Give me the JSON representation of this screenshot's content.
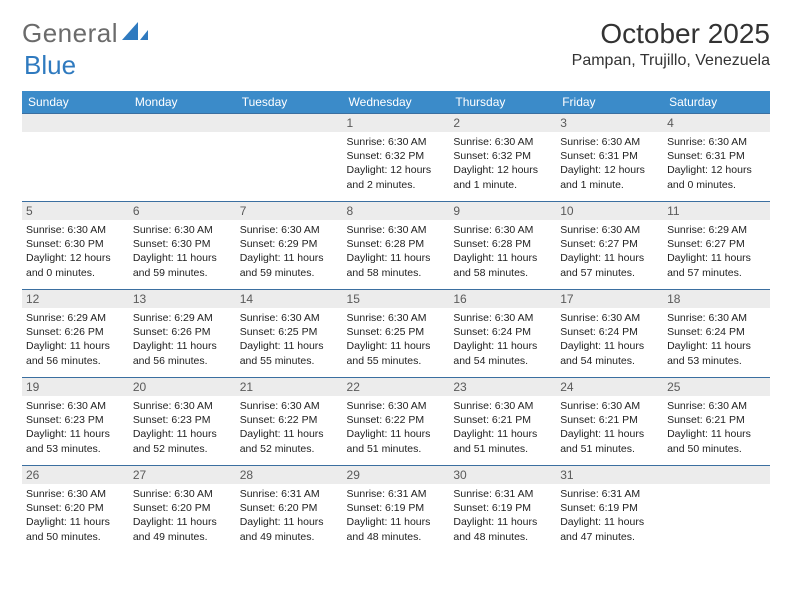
{
  "logo": {
    "part1": "General",
    "part2": "Blue"
  },
  "title": "October 2025",
  "location": "Pampan, Trujillo, Venezuela",
  "colors": {
    "header_bg": "#3b8bc9",
    "header_text": "#ffffff",
    "daynum_bg": "#ececec",
    "row_divider": "#3b6fa0",
    "logo_accent": "#2f7abf",
    "body_text": "#222222",
    "page_bg": "#ffffff"
  },
  "daynames": [
    "Sunday",
    "Monday",
    "Tuesday",
    "Wednesday",
    "Thursday",
    "Friday",
    "Saturday"
  ],
  "weeks": [
    [
      {
        "n": "",
        "sr": "",
        "ss": "",
        "dl": ""
      },
      {
        "n": "",
        "sr": "",
        "ss": "",
        "dl": ""
      },
      {
        "n": "",
        "sr": "",
        "ss": "",
        "dl": ""
      },
      {
        "n": "1",
        "sr": "Sunrise: 6:30 AM",
        "ss": "Sunset: 6:32 PM",
        "dl": "Daylight: 12 hours and 2 minutes."
      },
      {
        "n": "2",
        "sr": "Sunrise: 6:30 AM",
        "ss": "Sunset: 6:32 PM",
        "dl": "Daylight: 12 hours and 1 minute."
      },
      {
        "n": "3",
        "sr": "Sunrise: 6:30 AM",
        "ss": "Sunset: 6:31 PM",
        "dl": "Daylight: 12 hours and 1 minute."
      },
      {
        "n": "4",
        "sr": "Sunrise: 6:30 AM",
        "ss": "Sunset: 6:31 PM",
        "dl": "Daylight: 12 hours and 0 minutes."
      }
    ],
    [
      {
        "n": "5",
        "sr": "Sunrise: 6:30 AM",
        "ss": "Sunset: 6:30 PM",
        "dl": "Daylight: 12 hours and 0 minutes."
      },
      {
        "n": "6",
        "sr": "Sunrise: 6:30 AM",
        "ss": "Sunset: 6:30 PM",
        "dl": "Daylight: 11 hours and 59 minutes."
      },
      {
        "n": "7",
        "sr": "Sunrise: 6:30 AM",
        "ss": "Sunset: 6:29 PM",
        "dl": "Daylight: 11 hours and 59 minutes."
      },
      {
        "n": "8",
        "sr": "Sunrise: 6:30 AM",
        "ss": "Sunset: 6:28 PM",
        "dl": "Daylight: 11 hours and 58 minutes."
      },
      {
        "n": "9",
        "sr": "Sunrise: 6:30 AM",
        "ss": "Sunset: 6:28 PM",
        "dl": "Daylight: 11 hours and 58 minutes."
      },
      {
        "n": "10",
        "sr": "Sunrise: 6:30 AM",
        "ss": "Sunset: 6:27 PM",
        "dl": "Daylight: 11 hours and 57 minutes."
      },
      {
        "n": "11",
        "sr": "Sunrise: 6:29 AM",
        "ss": "Sunset: 6:27 PM",
        "dl": "Daylight: 11 hours and 57 minutes."
      }
    ],
    [
      {
        "n": "12",
        "sr": "Sunrise: 6:29 AM",
        "ss": "Sunset: 6:26 PM",
        "dl": "Daylight: 11 hours and 56 minutes."
      },
      {
        "n": "13",
        "sr": "Sunrise: 6:29 AM",
        "ss": "Sunset: 6:26 PM",
        "dl": "Daylight: 11 hours and 56 minutes."
      },
      {
        "n": "14",
        "sr": "Sunrise: 6:30 AM",
        "ss": "Sunset: 6:25 PM",
        "dl": "Daylight: 11 hours and 55 minutes."
      },
      {
        "n": "15",
        "sr": "Sunrise: 6:30 AM",
        "ss": "Sunset: 6:25 PM",
        "dl": "Daylight: 11 hours and 55 minutes."
      },
      {
        "n": "16",
        "sr": "Sunrise: 6:30 AM",
        "ss": "Sunset: 6:24 PM",
        "dl": "Daylight: 11 hours and 54 minutes."
      },
      {
        "n": "17",
        "sr": "Sunrise: 6:30 AM",
        "ss": "Sunset: 6:24 PM",
        "dl": "Daylight: 11 hours and 54 minutes."
      },
      {
        "n": "18",
        "sr": "Sunrise: 6:30 AM",
        "ss": "Sunset: 6:24 PM",
        "dl": "Daylight: 11 hours and 53 minutes."
      }
    ],
    [
      {
        "n": "19",
        "sr": "Sunrise: 6:30 AM",
        "ss": "Sunset: 6:23 PM",
        "dl": "Daylight: 11 hours and 53 minutes."
      },
      {
        "n": "20",
        "sr": "Sunrise: 6:30 AM",
        "ss": "Sunset: 6:23 PM",
        "dl": "Daylight: 11 hours and 52 minutes."
      },
      {
        "n": "21",
        "sr": "Sunrise: 6:30 AM",
        "ss": "Sunset: 6:22 PM",
        "dl": "Daylight: 11 hours and 52 minutes."
      },
      {
        "n": "22",
        "sr": "Sunrise: 6:30 AM",
        "ss": "Sunset: 6:22 PM",
        "dl": "Daylight: 11 hours and 51 minutes."
      },
      {
        "n": "23",
        "sr": "Sunrise: 6:30 AM",
        "ss": "Sunset: 6:21 PM",
        "dl": "Daylight: 11 hours and 51 minutes."
      },
      {
        "n": "24",
        "sr": "Sunrise: 6:30 AM",
        "ss": "Sunset: 6:21 PM",
        "dl": "Daylight: 11 hours and 51 minutes."
      },
      {
        "n": "25",
        "sr": "Sunrise: 6:30 AM",
        "ss": "Sunset: 6:21 PM",
        "dl": "Daylight: 11 hours and 50 minutes."
      }
    ],
    [
      {
        "n": "26",
        "sr": "Sunrise: 6:30 AM",
        "ss": "Sunset: 6:20 PM",
        "dl": "Daylight: 11 hours and 50 minutes."
      },
      {
        "n": "27",
        "sr": "Sunrise: 6:30 AM",
        "ss": "Sunset: 6:20 PM",
        "dl": "Daylight: 11 hours and 49 minutes."
      },
      {
        "n": "28",
        "sr": "Sunrise: 6:31 AM",
        "ss": "Sunset: 6:20 PM",
        "dl": "Daylight: 11 hours and 49 minutes."
      },
      {
        "n": "29",
        "sr": "Sunrise: 6:31 AM",
        "ss": "Sunset: 6:19 PM",
        "dl": "Daylight: 11 hours and 48 minutes."
      },
      {
        "n": "30",
        "sr": "Sunrise: 6:31 AM",
        "ss": "Sunset: 6:19 PM",
        "dl": "Daylight: 11 hours and 48 minutes."
      },
      {
        "n": "31",
        "sr": "Sunrise: 6:31 AM",
        "ss": "Sunset: 6:19 PM",
        "dl": "Daylight: 11 hours and 47 minutes."
      },
      {
        "n": "",
        "sr": "",
        "ss": "",
        "dl": ""
      }
    ]
  ]
}
